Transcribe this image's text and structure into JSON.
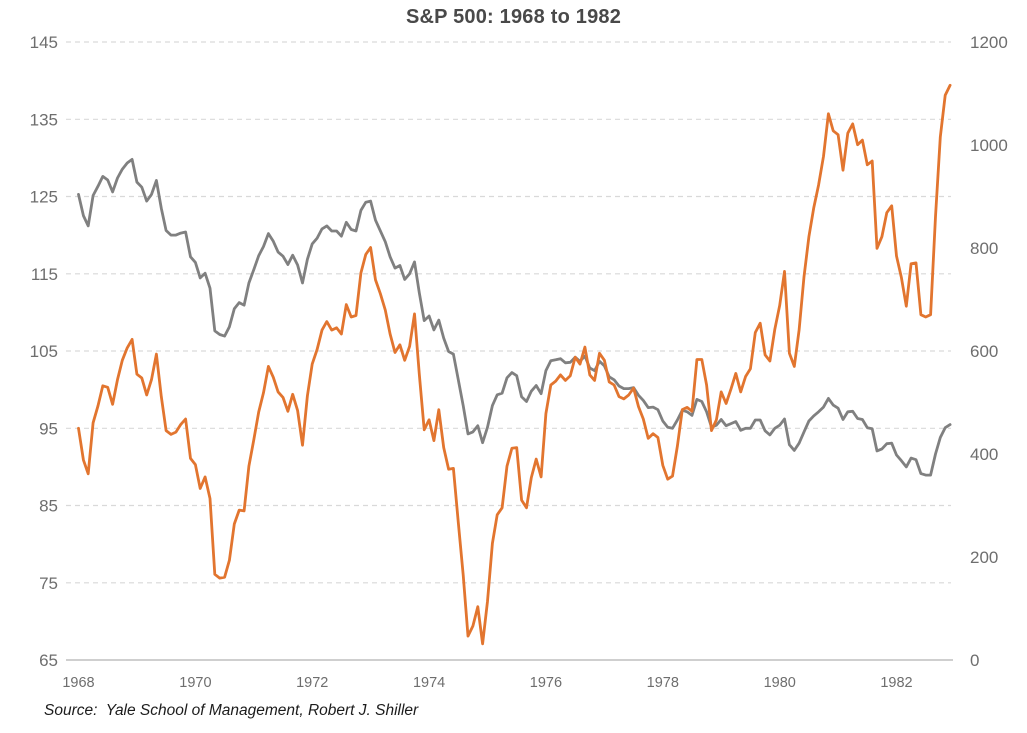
{
  "title": {
    "text": "S&P 500: 1968 to 1982"
  },
  "source": {
    "text": "Source:  Yale School of Management, Robert J. Shiller"
  },
  "chart_data": {
    "type": "line",
    "title": "S&P 500: 1968 to 1982",
    "legend": "none",
    "grid": "horizontal dashed",
    "x_axis": {
      "range": [
        1968,
        1982.9167
      ],
      "sampling": "monthly",
      "tick_labels": [
        "1968",
        "1970",
        "1972",
        "1974",
        "1976",
        "1978",
        "1980",
        "1982"
      ]
    },
    "left_axis": {
      "range": [
        65,
        145
      ],
      "ticks": [
        65,
        75,
        85,
        95,
        105,
        115,
        125,
        135,
        145
      ]
    },
    "right_axis": {
      "range": [
        0,
        1200
      ],
      "ticks": [
        0,
        200,
        400,
        600,
        800,
        1000,
        1200
      ]
    },
    "colors": {
      "orange": "#E2752F",
      "gray": "#808080",
      "gridline": "#D9D9D9",
      "axis_line": "#BFBFBF",
      "tick_label": "#6E6E6E",
      "title": "#494949",
      "source": "#1C1C1C"
    },
    "series": [
      {
        "name": "gray-line-right-axis",
        "axis": "right",
        "color": "#808080",
        "values": [
          904,
          863,
          843,
          902,
          920,
          939,
          932,
          909,
          936,
          953,
          965,
          972,
          928,
          918,
          891,
          904,
          931,
          877,
          834,
          825,
          825,
          829,
          831,
          783,
          772,
          742,
          751,
          722,
          639,
          632,
          629,
          647,
          682,
          694,
          689,
          732,
          758,
          785,
          803,
          828,
          813,
          792,
          784,
          768,
          786,
          767,
          732,
          778,
          808,
          819,
          837,
          843,
          833,
          833,
          823,
          850,
          836,
          833,
          873,
          889,
          891,
          854,
          833,
          812,
          783,
          761,
          766,
          739,
          750,
          773,
          713,
          659,
          668,
          641,
          660,
          625,
          599,
          594,
          544,
          494,
          439,
          443,
          455,
          422,
          452,
          494,
          515,
          518,
          548,
          558,
          552,
          511,
          502,
          522,
          533,
          517,
          562,
          581,
          583,
          585,
          577,
          578,
          588,
          580,
          590,
          567,
          562,
          580,
          571,
          550,
          544,
          532,
          527,
          527,
          529,
          514,
          504,
          490,
          491,
          486,
          464,
          452,
          450,
          466,
          485,
          482,
          475,
          506,
          502,
          482,
          452,
          456,
          467,
          455,
          459,
          463,
          446,
          450,
          450,
          466,
          466,
          445,
          437,
          450,
          456,
          468,
          418,
          407,
          421,
          443,
          464,
          474,
          482,
          491,
          508,
          495,
          489,
          467,
          482,
          483,
          469,
          467,
          451,
          449,
          406,
          410,
          420,
          421,
          398,
          387,
          375,
          392,
          389,
          362,
          359,
          359,
          400,
          432,
          451,
          457
        ]
      },
      {
        "name": "orange-line-left-axis",
        "axis": "left",
        "color": "#E2752F",
        "values": [
          95.0,
          90.9,
          89.1,
          95.7,
          97.9,
          100.5,
          100.3,
          98.1,
          101.3,
          103.8,
          105.4,
          106.5,
          102.0,
          101.5,
          99.3,
          101.3,
          104.6,
          99.1,
          94.7,
          94.2,
          94.5,
          95.5,
          96.2,
          91.1,
          90.3,
          87.2,
          88.7,
          85.9,
          76.1,
          75.6,
          75.7,
          77.9,
          82.6,
          84.4,
          84.3,
          90.1,
          93.5,
          97.1,
          99.6,
          103.0,
          101.6,
          99.7,
          99.0,
          97.2,
          99.4,
          97.3,
          92.8,
          99.2,
          103.3,
          105.2,
          107.7,
          108.8,
          107.7,
          108.0,
          107.2,
          111.0,
          109.4,
          109.6,
          115.1,
          117.5,
          118.4,
          114.2,
          112.4,
          110.3,
          107.2,
          104.8,
          105.8,
          103.8,
          105.6,
          109.8,
          102.0,
          94.8,
          96.1,
          93.4,
          97.4,
          92.5,
          89.7,
          89.8,
          82.8,
          76.0,
          68.1,
          69.4,
          71.9,
          67.1,
          72.6,
          80.1,
          83.8,
          84.7,
          90.1,
          92.4,
          92.5,
          85.7,
          84.7,
          88.6,
          91.0,
          88.7,
          96.9,
          100.6,
          101.1,
          101.9,
          101.2,
          101.8,
          104.2,
          103.3,
          105.5,
          101.9,
          101.2,
          104.7,
          103.8,
          101.0,
          100.6,
          99.1,
          98.8,
          99.3,
          100.2,
          97.8,
          96.2,
          93.7,
          94.3,
          93.8,
          90.2,
          88.4,
          88.8,
          92.7,
          97.4,
          97.7,
          97.2,
          103.9,
          103.9,
          100.6,
          94.7,
          96.1,
          99.7,
          98.2,
          100.1,
          102.1,
          99.7,
          101.7,
          102.7,
          107.4,
          108.6,
          104.5,
          103.7,
          107.8,
          110.9,
          115.3,
          104.7,
          103.0,
          107.7,
          114.6,
          119.8,
          123.5,
          126.5,
          130.2,
          135.7,
          133.5,
          133.0,
          128.4,
          133.2,
          134.4,
          131.7,
          132.3,
          129.1,
          129.6,
          118.3,
          119.8,
          122.9,
          123.8,
          117.3,
          114.5,
          110.8,
          116.3,
          116.4,
          109.7,
          109.4,
          109.7,
          122.4,
          132.7,
          138.1,
          139.4
        ]
      }
    ]
  }
}
